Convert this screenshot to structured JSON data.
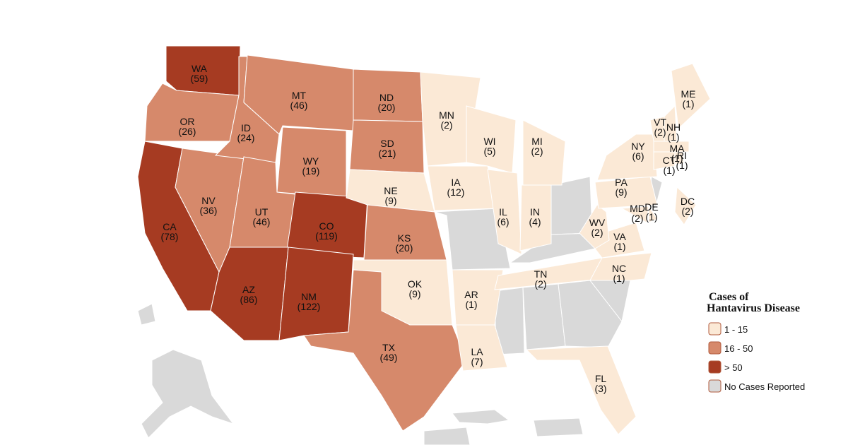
{
  "map": {
    "states": [
      {
        "abbr": "WA",
        "cases": "(59)",
        "color": "#a63b22"
      },
      {
        "abbr": "OR",
        "cases": "(26)",
        "color": "#d6896b"
      },
      {
        "abbr": "CA",
        "cases": "(78)",
        "color": "#a63b22"
      },
      {
        "abbr": "NV",
        "cases": "(36)",
        "color": "#d6896b"
      },
      {
        "abbr": "ID",
        "cases": "(24)",
        "color": "#d6896b"
      },
      {
        "abbr": "MT",
        "cases": "(46)",
        "color": "#d6896b"
      },
      {
        "abbr": "WY",
        "cases": "(19)",
        "color": "#d6896b"
      },
      {
        "abbr": "UT",
        "cases": "(46)",
        "color": "#d6896b"
      },
      {
        "abbr": "CO",
        "cases": "(119)",
        "color": "#a63b22"
      },
      {
        "abbr": "AZ",
        "cases": "(86)",
        "color": "#a63b22"
      },
      {
        "abbr": "NM",
        "cases": "(122)",
        "color": "#a63b22"
      },
      {
        "abbr": "ND",
        "cases": "(20)",
        "color": "#d6896b"
      },
      {
        "abbr": "SD",
        "cases": "(21)",
        "color": "#d6896b"
      },
      {
        "abbr": "NE",
        "cases": "(9)",
        "color": "#fbe9d6"
      },
      {
        "abbr": "KS",
        "cases": "(20)",
        "color": "#d6896b"
      },
      {
        "abbr": "OK",
        "cases": "(9)",
        "color": "#fbe9d6"
      },
      {
        "abbr": "TX",
        "cases": "(49)",
        "color": "#d6896b"
      },
      {
        "abbr": "MN",
        "cases": "(2)",
        "color": "#fbe9d6"
      },
      {
        "abbr": "IA",
        "cases": "(12)",
        "color": "#fbe9d6"
      },
      {
        "abbr": "AR",
        "cases": "(1)",
        "color": "#fbe9d6"
      },
      {
        "abbr": "LA",
        "cases": "(7)",
        "color": "#fbe9d6"
      },
      {
        "abbr": "WI",
        "cases": "(5)",
        "color": "#fbe9d6"
      },
      {
        "abbr": "IL",
        "cases": "(6)",
        "color": "#fbe9d6"
      },
      {
        "abbr": "MI",
        "cases": "(2)",
        "color": "#fbe9d6"
      },
      {
        "abbr": "IN",
        "cases": "(4)",
        "color": "#fbe9d6"
      },
      {
        "abbr": "TN",
        "cases": "(2)",
        "color": "#fbe9d6"
      },
      {
        "abbr": "FL",
        "cases": "(3)",
        "color": "#fbe9d6"
      },
      {
        "abbr": "NC",
        "cases": "(1)",
        "color": "#fbe9d6"
      },
      {
        "abbr": "VA",
        "cases": "(1)",
        "color": "#fbe9d6"
      },
      {
        "abbr": "WV",
        "cases": "(2)",
        "color": "#fbe9d6"
      },
      {
        "abbr": "PA",
        "cases": "(9)",
        "color": "#fbe9d6"
      },
      {
        "abbr": "NY",
        "cases": "(6)",
        "color": "#fbe9d6"
      },
      {
        "abbr": "MD",
        "cases": "(2)",
        "color": "#fbe9d6"
      },
      {
        "abbr": "DE",
        "cases": "(1)",
        "color": "#fbe9d6"
      },
      {
        "abbr": "VT",
        "cases": "(2)",
        "color": "#fbe9d6"
      },
      {
        "abbr": "NH",
        "cases": "(1)",
        "color": "#fbe9d6"
      },
      {
        "abbr": "ME",
        "cases": "(1)",
        "color": "#fbe9d6"
      },
      {
        "abbr": "MA",
        "cases": "(1)",
        "color": "#fbe9d6"
      },
      {
        "abbr": "CT",
        "cases": "(1)",
        "color": "#fbe9d6"
      },
      {
        "abbr": "RI",
        "cases": "(1)",
        "color": "#fbe9d6"
      },
      {
        "abbr": "DC",
        "cases": "(2)",
        "color": "#fbe9d6"
      }
    ],
    "legend": {
      "title": [
        "Cases of",
        "Hantavirus Disease"
      ],
      "items": [
        {
          "label": "1 - 15",
          "color": "#fbe9d6"
        },
        {
          "label": "16 - 50",
          "color": "#d6896b"
        },
        {
          "label": "> 50",
          "color": "#a63b22"
        },
        {
          "label": "No Cases Reported",
          "color": "#d9d9d9"
        }
      ]
    }
  }
}
